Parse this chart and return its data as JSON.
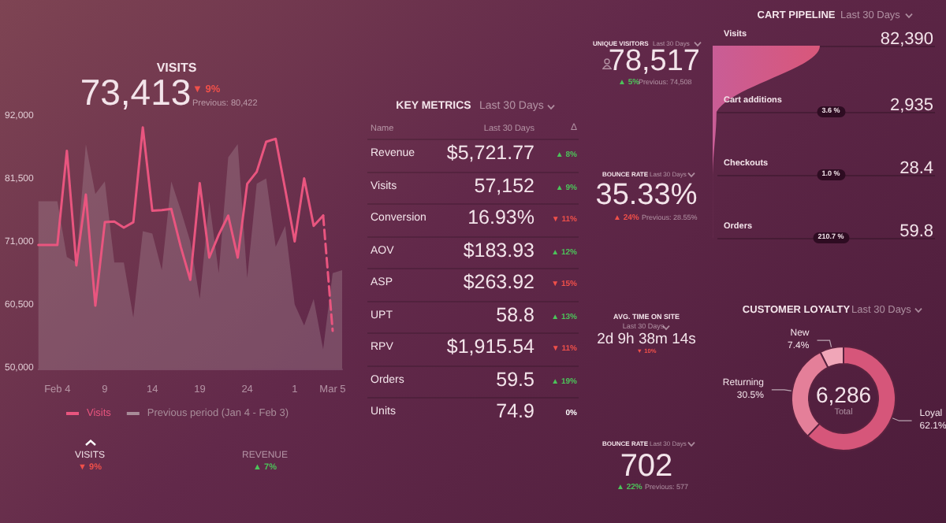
{
  "chart_data": [
    {
      "type": "line",
      "title": "VISITS",
      "annotations": [
        "73,413",
        "▼ 9%",
        "Previous: 80,422",
        "VISITS",
        "▼ 9%",
        "REVENUE",
        "▲ 7%"
      ],
      "x": [
        "--02-02",
        "--02-03",
        "--02-04",
        "--02-05",
        "--02-06",
        "--02-07",
        "--02-08",
        "--02-09",
        "--02-10",
        "--02-11",
        "--02-12",
        "--02-13",
        "--02-14",
        "--02-15",
        "--02-16",
        "--02-17",
        "--02-18",
        "--02-19",
        "--02-20",
        "--02-21",
        "--02-22",
        "--02-23",
        "--02-24",
        "--02-25",
        "--02-26",
        "--02-27",
        "--02-28",
        "--03-01",
        "--03-02",
        "--03-03",
        "--03-04",
        "--03-05",
        "--03-06"
      ],
      "series": [
        {
          "name": "Visits",
          "color": "#e9557f",
          "values": [
            70600,
            70600,
            70600,
            86300,
            67200,
            79000,
            60500,
            74400,
            74500,
            73500,
            74400,
            90200,
            76300,
            76400,
            76600,
            70300,
            64800,
            80900,
            68500,
            72300,
            75500,
            68500,
            80800,
            82800,
            87800,
            88300,
            79900,
            71200,
            81700,
            73800,
            75500,
            null,
            null
          ]
        },
        {
          "name": "Previous period (Jan 4 - Feb 3)",
          "type": "area",
          "color": "#a88c99",
          "values": [
            77900,
            77900,
            77900,
            68600,
            67700,
            87400,
            79100,
            81200,
            67700,
            67700,
            58500,
            72900,
            72500,
            66400,
            81200,
            76400,
            71200,
            61600,
            77900,
            65900,
            85200,
            87400,
            65100,
            80800,
            81700,
            70300,
            73800,
            60700,
            57200,
            61600,
            53200,
            65900,
            66400
          ]
        },
        {
          "color": "#e9557f",
          "line_style": "dashed",
          "values": [
            null,
            null,
            null,
            null,
            null,
            null,
            null,
            null,
            null,
            null,
            null,
            null,
            null,
            null,
            null,
            null,
            null,
            null,
            null,
            null,
            null,
            null,
            null,
            null,
            null,
            null,
            null,
            null,
            null,
            null,
            75500,
            56300,
            null
          ]
        }
      ],
      "xlim": [
        "--02-02",
        "--03-06"
      ],
      "xticks": [
        {
          "value": "--02-04",
          "label": "Feb 4"
        },
        {
          "value": "--02-09",
          "label": "9"
        },
        {
          "value": "--02-14",
          "label": "14"
        },
        {
          "value": "--02-19",
          "label": "19"
        },
        {
          "value": "--02-24",
          "label": "24"
        },
        {
          "value": "--03-01",
          "label": "1"
        },
        {
          "value": "--03-05",
          "label": "Mar 5"
        }
      ],
      "ylim": [
        50000,
        92000
      ],
      "yticks": [
        {
          "value": 50000,
          "label": "50,000"
        },
        {
          "value": 60500,
          "label": "60,500"
        },
        {
          "value": 71000,
          "label": "71,000"
        },
        {
          "value": 81500,
          "label": "81,500"
        },
        {
          "value": 92000,
          "label": "92,000"
        }
      ],
      "grid": false,
      "legend": "bottom",
      "marker": "none",
      "line_style": "solid"
    },
    {
      "type": "other",
      "title": "KEY METRICS",
      "subtitle": "Last 30 Days",
      "annotations": [
        "Name",
        "Last 30 Days",
        "Δ",
        "Revenue",
        "$5,721.77",
        "▲ 8%",
        "Visits",
        "57,152",
        "▲ 9%",
        "Conversion",
        "16.93%",
        "▼ 11%",
        "AOV",
        "$183.93",
        "▲ 12%",
        "ASP",
        "$263.92",
        "▼ 15%",
        "UPT",
        "58.8",
        "▲ 13%",
        "RPV",
        "$1,915.54",
        "▼ 11%",
        "Orders",
        "59.5",
        "▲ 19%",
        "Units",
        "74.9",
        "0%"
      ]
    },
    {
      "type": "other",
      "title": "UNIQUE VISITORS",
      "subtitle": "Last 30 Days",
      "annotations": [
        "78,517",
        "▲ 5%",
        "Previous: 74,508"
      ]
    },
    {
      "type": "other",
      "title": "BOUNCE RATE",
      "subtitle": "Last 30 Days",
      "annotations": [
        "35.33%",
        "▲ 24%",
        "Previous: 28.55%"
      ]
    },
    {
      "type": "other",
      "title": "AVG. TIME ON SITE",
      "subtitle": "Last 30 Days",
      "annotations": [
        "2d 9h 38m 14s",
        "▼ 10%"
      ]
    },
    {
      "type": "other",
      "title": "BOUNCE RATE",
      "subtitle": "Last 30 Days",
      "annotations": [
        "702",
        "▲ 22%",
        "Previous: 577"
      ]
    },
    {
      "type": "other",
      "title": "CART PIPELINE",
      "subtitle": "Last 30 Days",
      "categories": [
        "Visits",
        "Cart additions",
        "Checkouts",
        "Orders"
      ],
      "values": [
        82390,
        2935,
        28.4,
        59.8
      ],
      "value_labels": [
        "82,390",
        "2,935",
        "28.4",
        "59.8"
      ],
      "color": "#d9577a",
      "annotations": [
        "3.6 %",
        "1.0 %",
        "210.7 %"
      ]
    },
    {
      "type": "donut",
      "title": "CUSTOMER LOYALTY",
      "subtitle": "Last 30 Days",
      "categories": [
        "New",
        "Returning",
        "Loyal"
      ],
      "values": [
        7.4,
        30.5,
        62.1
      ],
      "value_labels": [
        "7.4%",
        "30.5%",
        "62.1%"
      ],
      "colors": [
        "#f0a6b8",
        "#e47f99",
        "#d6567a"
      ],
      "annotations": [
        "6,286",
        "Total"
      ]
    }
  ]
}
